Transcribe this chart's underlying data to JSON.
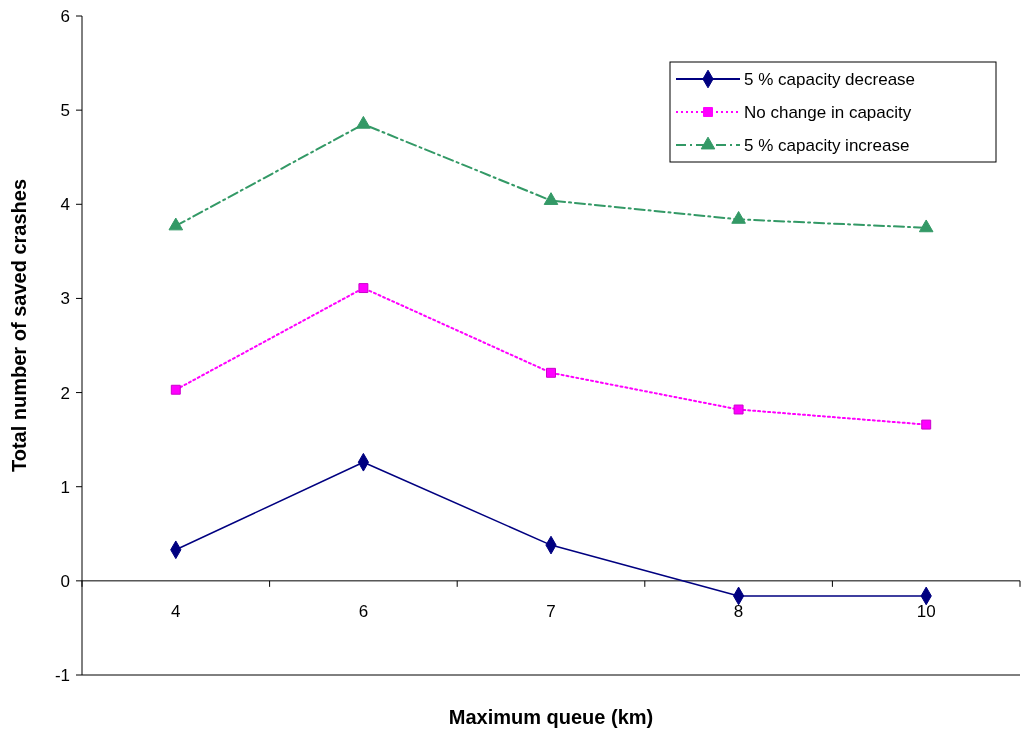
{
  "chart_data": {
    "type": "line",
    "xlabel": "Maximum queue (km)",
    "ylabel": "Total number of saved crashes",
    "categories": [
      "4",
      "6",
      "7",
      "8",
      "10"
    ],
    "ylim": [
      -1,
      6
    ],
    "yticks": [
      -1,
      0,
      1,
      2,
      3,
      4,
      5,
      6
    ],
    "grid": false,
    "legend": "top right",
    "series": [
      {
        "name": "5 % capacity decrease",
        "color": "#000080",
        "marker": "diamond",
        "line_style": "solid",
        "values": [
          0.33,
          1.26,
          0.38,
          -0.16,
          -0.16
        ]
      },
      {
        "name": "No change in capacity",
        "color": "#ff00ff",
        "marker": "square",
        "line_style": "dotted",
        "values": [
          2.03,
          3.11,
          2.21,
          1.82,
          1.66
        ]
      },
      {
        "name": "5 % capacity increase",
        "color": "#339966",
        "marker": "triangle",
        "line_style": "dashed",
        "values": [
          3.77,
          4.85,
          4.04,
          3.84,
          3.75
        ]
      }
    ]
  }
}
